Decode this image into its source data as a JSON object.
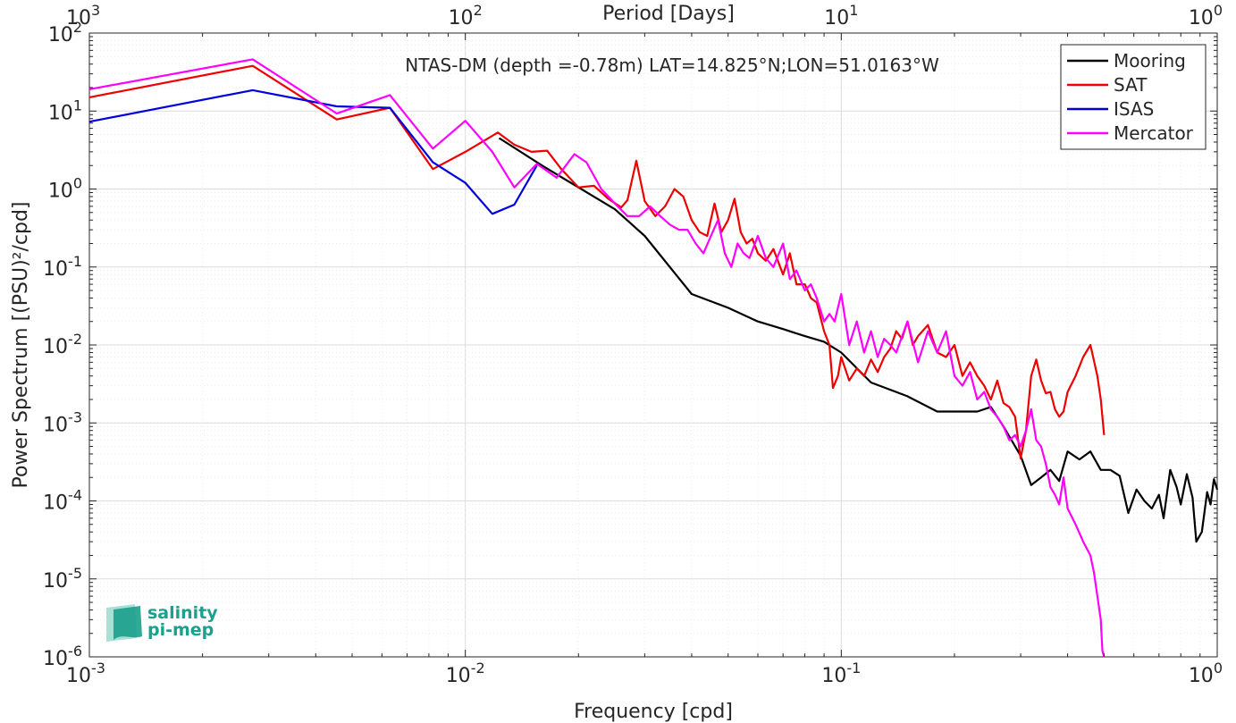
{
  "chart_data": {
    "type": "line",
    "title": "NTAS-DM (depth =-0.78m) LAT=14.825°N;LON=51.0163°W",
    "xlabel": "Frequency [cpd]",
    "ylabel": "Power Spectrum [(PSU)²/cpd]",
    "x2label": "Period [Days]",
    "xscale": "log",
    "yscale": "log",
    "xlim": [
      0.001,
      1
    ],
    "ylim": [
      1e-06,
      100
    ],
    "grid": true,
    "legend_position": "top-right",
    "x_ticks": [
      {
        "base": "10",
        "exp": "-3"
      },
      {
        "base": "10",
        "exp": "-2"
      },
      {
        "base": "10",
        "exp": "-1"
      },
      {
        "base": "10",
        "exp": "0"
      }
    ],
    "x2_ticks": [
      {
        "base": "10",
        "exp": "3"
      },
      {
        "base": "10",
        "exp": "2"
      },
      {
        "base": "10",
        "exp": "1"
      },
      {
        "base": "10",
        "exp": "0"
      }
    ],
    "y_ticks": [
      {
        "base": "10",
        "exp": "2"
      },
      {
        "base": "10",
        "exp": "1"
      },
      {
        "base": "10",
        "exp": "0"
      },
      {
        "base": "10",
        "exp": "-1"
      },
      {
        "base": "10",
        "exp": "-2"
      },
      {
        "base": "10",
        "exp": "-3"
      },
      {
        "base": "10",
        "exp": "-4"
      },
      {
        "base": "10",
        "exp": "-5"
      },
      {
        "base": "10",
        "exp": "-6"
      }
    ],
    "series": [
      {
        "name": "Mooring",
        "color": "#000000",
        "points": [
          [
            0.0123,
            4.5
          ],
          [
            0.016,
            2.0
          ],
          [
            0.02,
            1.05
          ],
          [
            0.025,
            0.55
          ],
          [
            0.03,
            0.25
          ],
          [
            0.04,
            0.045
          ],
          [
            0.05,
            0.03
          ],
          [
            0.06,
            0.02
          ],
          [
            0.07,
            0.016
          ],
          [
            0.08,
            0.013
          ],
          [
            0.09,
            0.011
          ],
          [
            0.1,
            0.008
          ],
          [
            0.12,
            0.0033
          ],
          [
            0.15,
            0.0022
          ],
          [
            0.18,
            0.0014
          ],
          [
            0.2,
            0.0014
          ],
          [
            0.23,
            0.0014
          ],
          [
            0.25,
            0.0016
          ],
          [
            0.27,
            0.0009
          ],
          [
            0.3,
            0.00038
          ],
          [
            0.32,
            0.00016
          ],
          [
            0.34,
            0.0002
          ],
          [
            0.36,
            0.00025
          ],
          [
            0.38,
            0.00018
          ],
          [
            0.4,
            0.00043
          ],
          [
            0.43,
            0.00034
          ],
          [
            0.46,
            0.00043
          ],
          [
            0.49,
            0.00025
          ],
          [
            0.52,
            0.00025
          ],
          [
            0.55,
            0.00021
          ],
          [
            0.58,
            7e-05
          ],
          [
            0.61,
            0.00014
          ],
          [
            0.64,
            0.0001
          ],
          [
            0.67,
            8e-05
          ],
          [
            0.7,
            0.00012
          ],
          [
            0.72,
            6e-05
          ],
          [
            0.75,
            0.00025
          ],
          [
            0.78,
            0.00015
          ],
          [
            0.8,
            9e-05
          ],
          [
            0.83,
            0.00022
          ],
          [
            0.86,
            0.00011
          ],
          [
            0.88,
            3e-05
          ],
          [
            0.91,
            4e-05
          ],
          [
            0.94,
            0.00013
          ],
          [
            0.96,
            9e-05
          ],
          [
            0.98,
            0.00019
          ],
          [
            1.0,
            0.00014
          ]
        ]
      },
      {
        "name": "SAT",
        "color": "#ee0000",
        "points": [
          [
            0.001,
            15
          ],
          [
            0.00272,
            38
          ],
          [
            0.00455,
            7.8
          ],
          [
            0.0063,
            11
          ],
          [
            0.0082,
            1.8
          ],
          [
            0.01,
            3.0
          ],
          [
            0.0122,
            5.3
          ],
          [
            0.0135,
            3.7
          ],
          [
            0.015,
            3.0
          ],
          [
            0.0165,
            3.1
          ],
          [
            0.018,
            1.8
          ],
          [
            0.02,
            1.05
          ],
          [
            0.022,
            1.1
          ],
          [
            0.024,
            0.75
          ],
          [
            0.026,
            0.58
          ],
          [
            0.027,
            0.72
          ],
          [
            0.0285,
            2.3
          ],
          [
            0.03,
            0.7
          ],
          [
            0.032,
            0.45
          ],
          [
            0.034,
            0.6
          ],
          [
            0.036,
            1.0
          ],
          [
            0.038,
            0.8
          ],
          [
            0.04,
            0.4
          ],
          [
            0.042,
            0.28
          ],
          [
            0.044,
            0.25
          ],
          [
            0.046,
            0.65
          ],
          [
            0.048,
            0.28
          ],
          [
            0.05,
            0.4
          ],
          [
            0.052,
            0.75
          ],
          [
            0.054,
            0.28
          ],
          [
            0.056,
            0.2
          ],
          [
            0.058,
            0.23
          ],
          [
            0.06,
            0.15
          ],
          [
            0.063,
            0.12
          ],
          [
            0.066,
            0.17
          ],
          [
            0.07,
            0.08
          ],
          [
            0.073,
            0.15
          ],
          [
            0.076,
            0.06
          ],
          [
            0.08,
            0.06
          ],
          [
            0.083,
            0.04
          ],
          [
            0.086,
            0.035
          ],
          [
            0.09,
            0.015
          ],
          [
            0.093,
            0.01
          ],
          [
            0.095,
            0.0028
          ],
          [
            0.098,
            0.004
          ],
          [
            0.1,
            0.007
          ],
          [
            0.105,
            0.0035
          ],
          [
            0.11,
            0.005
          ],
          [
            0.115,
            0.004
          ],
          [
            0.12,
            0.0065
          ],
          [
            0.125,
            0.0045
          ],
          [
            0.13,
            0.007
          ],
          [
            0.135,
            0.009
          ],
          [
            0.14,
            0.015
          ],
          [
            0.145,
            0.012
          ],
          [
            0.15,
            0.02
          ],
          [
            0.155,
            0.01
          ],
          [
            0.16,
            0.013
          ],
          [
            0.17,
            0.018
          ],
          [
            0.18,
            0.008
          ],
          [
            0.19,
            0.007
          ],
          [
            0.2,
            0.01
          ],
          [
            0.21,
            0.004
          ],
          [
            0.22,
            0.006
          ],
          [
            0.23,
            0.004
          ],
          [
            0.24,
            0.003
          ],
          [
            0.25,
            0.002
          ],
          [
            0.26,
            0.0035
          ],
          [
            0.27,
            0.0018
          ],
          [
            0.28,
            0.0016
          ],
          [
            0.29,
            0.0012
          ],
          [
            0.3,
            0.00035
          ],
          [
            0.31,
            0.0008
          ],
          [
            0.32,
            0.004
          ],
          [
            0.33,
            0.0065
          ],
          [
            0.34,
            0.0035
          ],
          [
            0.35,
            0.0024
          ],
          [
            0.36,
            0.0025
          ],
          [
            0.37,
            0.0015
          ],
          [
            0.38,
            0.0012
          ],
          [
            0.39,
            0.0014
          ],
          [
            0.4,
            0.0025
          ],
          [
            0.42,
            0.004
          ],
          [
            0.44,
            0.007
          ],
          [
            0.46,
            0.01
          ],
          [
            0.48,
            0.004
          ],
          [
            0.49,
            0.002
          ],
          [
            0.5,
            0.0007
          ]
        ]
      },
      {
        "name": "ISAS",
        "color": "#0000dd",
        "points": [
          [
            0.001,
            7.3
          ],
          [
            0.00272,
            18.5
          ],
          [
            0.00455,
            11.5
          ],
          [
            0.0063,
            11
          ],
          [
            0.0082,
            2.2
          ],
          [
            0.01,
            1.2
          ],
          [
            0.0118,
            0.48
          ],
          [
            0.0135,
            0.63
          ],
          [
            0.0155,
            2.0
          ]
        ]
      },
      {
        "name": "Mercator",
        "color": "#ff00ff",
        "points": [
          [
            0.001,
            19
          ],
          [
            0.00272,
            46
          ],
          [
            0.00455,
            9.3
          ],
          [
            0.0063,
            16
          ],
          [
            0.0082,
            3.3
          ],
          [
            0.01,
            7.5
          ],
          [
            0.0118,
            3.0
          ],
          [
            0.0135,
            1.05
          ],
          [
            0.0155,
            2.1
          ],
          [
            0.0175,
            1.4
          ],
          [
            0.0195,
            2.8
          ],
          [
            0.021,
            2.2
          ],
          [
            0.023,
            1.0
          ],
          [
            0.025,
            0.65
          ],
          [
            0.027,
            0.45
          ],
          [
            0.029,
            0.45
          ],
          [
            0.031,
            0.6
          ],
          [
            0.033,
            0.45
          ],
          [
            0.035,
            0.35
          ],
          [
            0.037,
            0.3
          ],
          [
            0.039,
            0.3
          ],
          [
            0.041,
            0.2
          ],
          [
            0.043,
            0.15
          ],
          [
            0.045,
            0.25
          ],
          [
            0.047,
            0.4
          ],
          [
            0.049,
            0.15
          ],
          [
            0.051,
            0.1
          ],
          [
            0.053,
            0.2
          ],
          [
            0.055,
            0.15
          ],
          [
            0.057,
            0.13
          ],
          [
            0.06,
            0.25
          ],
          [
            0.063,
            0.13
          ],
          [
            0.066,
            0.1
          ],
          [
            0.07,
            0.2
          ],
          [
            0.073,
            0.07
          ],
          [
            0.076,
            0.09
          ],
          [
            0.08,
            0.05
          ],
          [
            0.083,
            0.06
          ],
          [
            0.086,
            0.04
          ],
          [
            0.09,
            0.02
          ],
          [
            0.093,
            0.025
          ],
          [
            0.096,
            0.02
          ],
          [
            0.1,
            0.045
          ],
          [
            0.105,
            0.01
          ],
          [
            0.11,
            0.02
          ],
          [
            0.115,
            0.008
          ],
          [
            0.12,
            0.015
          ],
          [
            0.125,
            0.007
          ],
          [
            0.13,
            0.012
          ],
          [
            0.135,
            0.01
          ],
          [
            0.14,
            0.008
          ],
          [
            0.15,
            0.02
          ],
          [
            0.16,
            0.006
          ],
          [
            0.17,
            0.015
          ],
          [
            0.18,
            0.008
          ],
          [
            0.19,
            0.015
          ],
          [
            0.2,
            0.004
          ],
          [
            0.21,
            0.003
          ],
          [
            0.22,
            0.0045
          ],
          [
            0.23,
            0.002
          ],
          [
            0.24,
            0.0025
          ],
          [
            0.25,
            0.0015
          ],
          [
            0.26,
            0.0012
          ],
          [
            0.27,
            0.0009
          ],
          [
            0.28,
            0.0006
          ],
          [
            0.29,
            0.0007
          ],
          [
            0.3,
            0.0005
          ],
          [
            0.31,
            0.0008
          ],
          [
            0.32,
            0.0015
          ],
          [
            0.33,
            0.0006
          ],
          [
            0.34,
            0.0005
          ],
          [
            0.35,
            0.0003
          ],
          [
            0.36,
            0.00015
          ],
          [
            0.37,
            0.00012
          ],
          [
            0.38,
            9e-05
          ],
          [
            0.39,
            0.0002
          ],
          [
            0.4,
            8e-05
          ],
          [
            0.42,
            5e-05
          ],
          [
            0.44,
            3e-05
          ],
          [
            0.46,
            2e-05
          ],
          [
            0.47,
            1.2e-05
          ],
          [
            0.48,
            6e-06
          ],
          [
            0.49,
            3e-06
          ],
          [
            0.495,
            1.2e-06
          ],
          [
            0.5,
            1e-06
          ]
        ]
      }
    ]
  },
  "logo": {
    "line1": "salinity",
    "line2": "pi-mep",
    "color": "#1aa08c"
  }
}
